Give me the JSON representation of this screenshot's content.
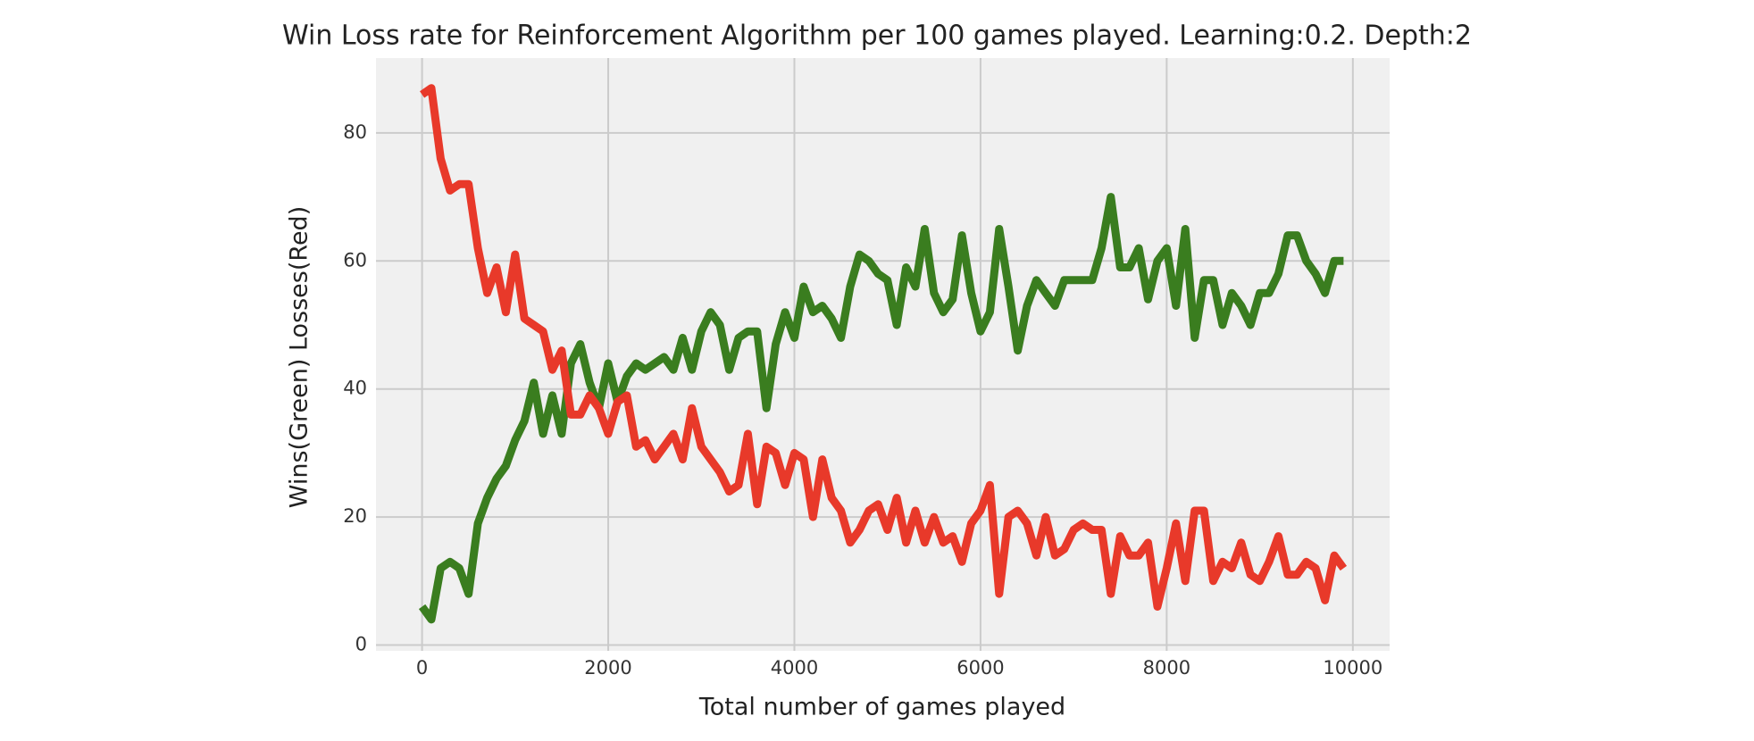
{
  "chart_data": {
    "type": "line",
    "title": "Win Loss rate for Reinforcement Algorithm per 100 games played. Learning:0.2. Depth:2",
    "xlabel": "Total number of games played",
    "ylabel": "Wins(Green) Losses(Red)",
    "x": [
      0,
      100,
      200,
      300,
      400,
      500,
      600,
      700,
      800,
      900,
      1000,
      1100,
      1200,
      1300,
      1400,
      1500,
      1600,
      1700,
      1800,
      1900,
      2000,
      2100,
      2200,
      2300,
      2400,
      2500,
      2600,
      2700,
      2800,
      2900,
      3000,
      3100,
      3200,
      3300,
      3400,
      3500,
      3600,
      3700,
      3800,
      3900,
      4000,
      4100,
      4200,
      4300,
      4400,
      4500,
      4600,
      4700,
      4800,
      4900,
      5000,
      5100,
      5200,
      5300,
      5400,
      5500,
      5600,
      5700,
      5800,
      5900,
      6000,
      6100,
      6200,
      6300,
      6400,
      6500,
      6600,
      6700,
      6800,
      6900,
      7000,
      7100,
      7200,
      7300,
      7400,
      7500,
      7600,
      7700,
      7800,
      7900,
      8000,
      8100,
      8200,
      8300,
      8400,
      8500,
      8600,
      8700,
      8800,
      8900,
      9000,
      9100,
      9200,
      9300,
      9400,
      9500,
      9600,
      9700,
      9800,
      9900
    ],
    "series": [
      {
        "color": "#3a7d1f",
        "values": [
          6,
          4,
          12,
          13,
          12,
          8,
          19,
          23,
          26,
          28,
          32,
          35,
          41,
          33,
          39,
          33,
          44,
          47,
          41,
          37,
          44,
          38,
          42,
          44,
          43,
          44,
          45,
          43,
          48,
          43,
          49,
          52,
          50,
          43,
          48,
          49,
          49,
          37,
          47,
          52,
          48,
          56,
          52,
          53,
          51,
          48,
          56,
          61,
          60,
          58,
          57,
          50,
          59,
          56,
          65,
          55,
          52,
          54,
          64,
          55,
          49,
          52,
          65,
          56,
          46,
          53,
          57,
          55,
          53,
          57,
          57,
          57,
          57,
          62,
          70,
          59,
          59,
          62,
          54,
          60,
          62,
          53,
          65,
          48,
          57,
          57,
          50,
          55,
          53,
          50,
          55,
          55,
          58,
          64,
          64,
          60,
          58,
          55,
          60,
          60
        ]
      },
      {
        "color": "#e8392a",
        "values": [
          86,
          87,
          76,
          71,
          72,
          72,
          62,
          55,
          59,
          52,
          61,
          51,
          50,
          49,
          43,
          46,
          36,
          36,
          39,
          37,
          33,
          38,
          39,
          31,
          32,
          29,
          31,
          33,
          29,
          37,
          31,
          29,
          27,
          24,
          25,
          33,
          22,
          31,
          30,
          25,
          30,
          29,
          20,
          29,
          23,
          21,
          16,
          18,
          21,
          22,
          18,
          23,
          16,
          21,
          16,
          20,
          16,
          17,
          13,
          19,
          21,
          25,
          8,
          20,
          21,
          19,
          14,
          20,
          14,
          15,
          18,
          19,
          18,
          18,
          8,
          17,
          14,
          14,
          16,
          6,
          12,
          19,
          10,
          21,
          21,
          10,
          13,
          12,
          16,
          11,
          10,
          13,
          17,
          11,
          11,
          13,
          12,
          7,
          14,
          12
        ]
      }
    ],
    "xlim": [
      -495,
      10395
    ],
    "xticks": [
      0,
      2000,
      4000,
      6000,
      8000,
      10000
    ],
    "ylim": [
      -0.9,
      91.7
    ],
    "yticks": [
      0,
      20,
      40,
      60,
      80
    ],
    "grid": true
  }
}
